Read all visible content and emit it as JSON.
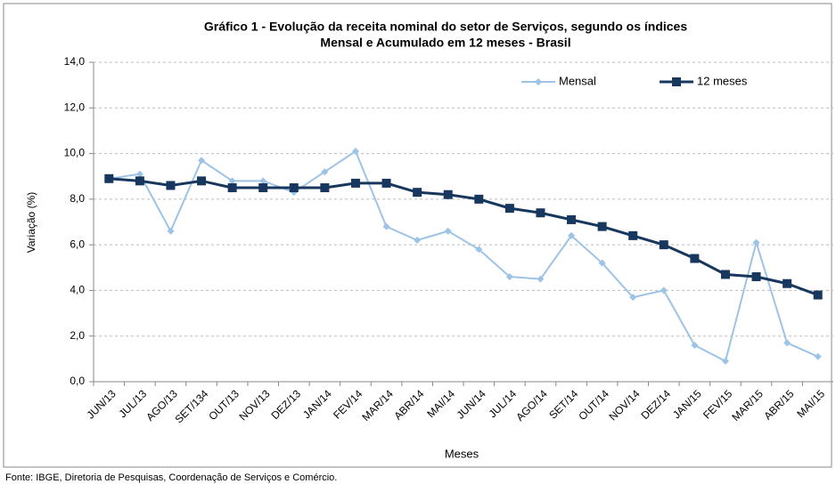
{
  "chart_data": {
    "type": "line",
    "title": [
      "Gráfico 1 - Evolução da receita nominal do setor de Serviços, segundo os índices",
      "Mensal e Acumulado em 12 meses - Brasil"
    ],
    "x_label": "Meses",
    "y_label": "Variação (%)",
    "source": "Fonte: IBGE, Diretoria de Pesquisas, Coordenação de Serviços e Comércio.",
    "categories": [
      "JUN/13",
      "JUL/13",
      "AGO/13",
      "SET/134",
      "OUT/13",
      "NOV/13",
      "DEZ/13",
      "JAN/14",
      "FEV/14",
      "MAR/14",
      "ABR/14",
      "MAI/14",
      "JUN/14",
      "JUL/14",
      "AGO/14",
      "SET/14",
      "OUT/14",
      "NOV/14",
      "DEZ/14",
      "JAN/15",
      "FEV/15",
      "MAR/15",
      "ABR/15",
      "MAI/15"
    ],
    "series": [
      {
        "name": "Mensal",
        "color": "#9dc3e6",
        "marker": "diamond",
        "values": [
          8.9,
          9.1,
          6.6,
          9.7,
          8.8,
          8.8,
          8.3,
          9.2,
          10.1,
          6.8,
          6.2,
          6.6,
          5.8,
          4.6,
          4.5,
          6.4,
          5.2,
          3.7,
          4.0,
          1.6,
          0.9,
          6.1,
          1.7,
          1.1
        ]
      },
      {
        "name": "12 meses",
        "color": "#17375e",
        "marker": "square",
        "values": [
          8.9,
          8.8,
          8.6,
          8.8,
          8.5,
          8.5,
          8.5,
          8.5,
          8.7,
          8.7,
          8.3,
          8.2,
          8.0,
          7.6,
          7.4,
          7.1,
          6.8,
          6.4,
          6.0,
          5.4,
          4.7,
          4.6,
          4.3,
          3.8
        ]
      }
    ],
    "ylim": [
      0,
      14
    ],
    "yticks": [
      {
        "value": 0,
        "label": "0,0"
      },
      {
        "value": 2,
        "label": "2,0"
      },
      {
        "value": 4,
        "label": "4,0"
      },
      {
        "value": 6,
        "label": "6,0"
      },
      {
        "value": 8,
        "label": "8,0"
      },
      {
        "value": 10,
        "label": "10,0"
      },
      {
        "value": 12,
        "label": "12,0"
      },
      {
        "value": 14,
        "label": "14,0"
      }
    ],
    "grid": true,
    "legend": "top-right"
  }
}
